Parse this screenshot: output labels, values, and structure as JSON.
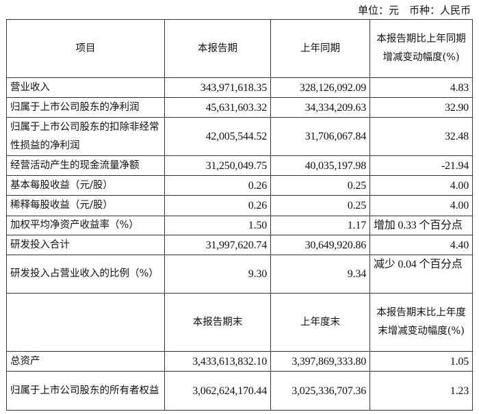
{
  "unit_note": "单位：元　币种：人民币",
  "header1": [
    "项目",
    "本报告期",
    "上年同期",
    "本报告期比上年同期增减变动幅度(%)"
  ],
  "rows1": [
    [
      "营业收入",
      "343,971,618.35",
      "328,126,092.09",
      "4.83"
    ],
    [
      "归属于上市公司股东的净利润",
      "45,631,603.32",
      "34,334,209.63",
      "32.90"
    ],
    [
      "归属于上市公司股东的扣除非经常性损益的净利润",
      "42,005,544.52",
      "31,706,067.84",
      "32.48"
    ],
    [
      "经营活动产生的现金流量净额",
      "31,250,049.75",
      "40,035,197.98",
      "-21.94"
    ],
    [
      "基本每股收益（元/股）",
      "0.26",
      "0.25",
      "4.00"
    ],
    [
      "稀释每股收益（元/股）",
      "0.26",
      "0.25",
      "4.00"
    ],
    [
      "加权平均净资产收益率（%）",
      "1.50",
      "1.17",
      "增加 0.33 个百分点"
    ],
    [
      "研发投入合计",
      "31,997,620.74",
      "30,649,920.86",
      "4.40"
    ],
    [
      "研发投入占营业收入的比例（%）",
      "9.30",
      "9.34",
      "减少 0.04 个百分点"
    ]
  ],
  "header2": [
    "",
    "本报告期末",
    "上年度末",
    "本报告期末比上年度末增减变动幅度(%)"
  ],
  "rows2": [
    [
      "总资产",
      "3,433,613,832.10",
      "3,397,869,333.80",
      "1.05"
    ],
    [
      "归属于上市公司股东的所有者权益",
      "3,062,624,170.44",
      "3,025,336,707.36",
      "1.23"
    ]
  ]
}
